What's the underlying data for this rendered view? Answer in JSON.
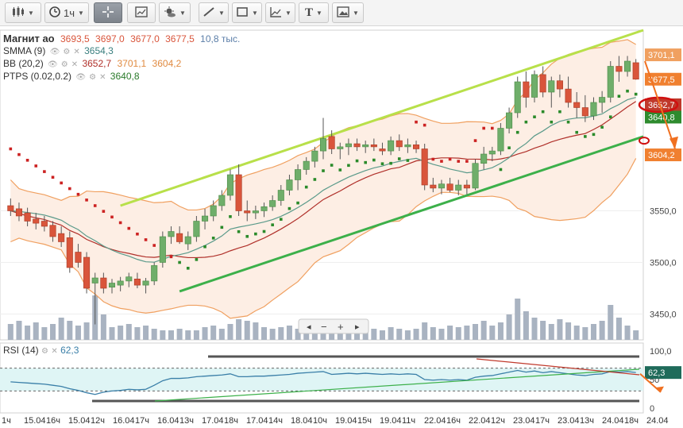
{
  "toolbar": {
    "timeframe": "1ч",
    "text_tool": "T"
  },
  "legend": {
    "symbol": "Магнит ао",
    "ohlc": [
      "3693,5",
      "3697,0",
      "3677,0",
      "3677,5"
    ],
    "volume": "10,8 тыс.",
    "smma_label": "SMMA (9)",
    "smma_value": "3654,3",
    "bb_label": "BB (20,2)",
    "bb_values": [
      "3652,7",
      "3701,1",
      "3604,2"
    ],
    "ptps_label": "PTPS (0.02,0.2)",
    "ptps_value": "3640,8",
    "rsi_label": "RSI (14)",
    "rsi_value": "62,3"
  },
  "price_axis": {
    "ticks": [
      "3550,0",
      "3500,0",
      "3450,0"
    ],
    "tags": [
      {
        "label": "3701,1",
        "color": "#f0a060"
      },
      {
        "label": "3677,5",
        "color": "#f08030"
      },
      {
        "label": "3652,7",
        "color": "#c0392b"
      },
      {
        "label": "3640,8",
        "color": "#2e8b2e"
      },
      {
        "label": "3604,2",
        "color": "#f08030"
      }
    ]
  },
  "rsi_axis": {
    "ticks": [
      "100,0",
      "50",
      "0"
    ],
    "tag": "62,3"
  },
  "x_axis": {
    "labels": [
      "1ч",
      "15.04",
      "16ч",
      "15.04",
      "12ч",
      "16.04",
      "17ч",
      "16.04",
      "13ч",
      "17.04",
      "18ч",
      "17.04",
      "14ч",
      "18.04",
      "10ч",
      "19.04",
      "15ч",
      "19.04",
      "11ч",
      "22.04",
      "16ч",
      "22.04",
      "12ч",
      "23.04",
      "17ч",
      "23.04",
      "13ч",
      "24.04",
      "18ч",
      "24.04"
    ]
  },
  "nav": {
    "minus": "−",
    "plus": "+"
  },
  "colors": {
    "bull": "#6fae6a",
    "bear": "#d9553b",
    "bb_band": "#f0a060",
    "bb_mid": "#b0302a",
    "smma": "#5a9a8a",
    "ptps": "#2a8a2a",
    "ptps_red": "#cc2222",
    "trend_top": "#b8e04a",
    "trend_bottom": "#3cb04a",
    "volume": "#a9b3c1",
    "rsi": "#3a7fa8",
    "rsi_fill": "#dff5f5"
  },
  "chart_data": {
    "type": "candlestick",
    "interval": "1ч",
    "price_ylim": [
      3425,
      3725
    ],
    "rsi_ylim": [
      0,
      100
    ],
    "last": {
      "open": 3693.5,
      "high": 3697.0,
      "low": 3677.0,
      "close": 3677.5,
      "volume": "10,8 тыс."
    },
    "indicators": {
      "SMMA (9)": 3654.3,
      "BB (20,2)": {
        "mid": 3652.7,
        "upper": 3701.1,
        "lower": 3604.2
      },
      "PTPS (0.02,0.2)": 3640.8,
      "RSI (14)": 62.3
    },
    "candles": [
      [
        3555,
        3562,
        3545,
        3550
      ],
      [
        3552,
        3558,
        3540,
        3545
      ],
      [
        3548,
        3553,
        3535,
        3540
      ],
      [
        3542,
        3548,
        3532,
        3538
      ],
      [
        3540,
        3545,
        3530,
        3535
      ],
      [
        3536,
        3540,
        3520,
        3525
      ],
      [
        3528,
        3535,
        3515,
        3520
      ],
      [
        3524,
        3530,
        3490,
        3495
      ],
      [
        3510,
        3518,
        3495,
        3500
      ],
      [
        3505,
        3510,
        3470,
        3475
      ],
      [
        3480,
        3490,
        3440,
        3485
      ],
      [
        3485,
        3490,
        3470,
        3475
      ],
      [
        3476,
        3484,
        3470,
        3480
      ],
      [
        3478,
        3486,
        3472,
        3482
      ],
      [
        3482,
        3490,
        3476,
        3486
      ],
      [
        3484,
        3490,
        3475,
        3478
      ],
      [
        3478,
        3485,
        3470,
        3482
      ],
      [
        3482,
        3500,
        3478,
        3497
      ],
      [
        3500,
        3530,
        3495,
        3525
      ],
      [
        3525,
        3535,
        3518,
        3530
      ],
      [
        3528,
        3535,
        3518,
        3520
      ],
      [
        3518,
        3530,
        3512,
        3525
      ],
      [
        3525,
        3545,
        3520,
        3540
      ],
      [
        3540,
        3552,
        3532,
        3545
      ],
      [
        3545,
        3560,
        3540,
        3555
      ],
      [
        3555,
        3570,
        3550,
        3565
      ],
      [
        3565,
        3590,
        3560,
        3585
      ],
      [
        3585,
        3595,
        3545,
        3550
      ],
      [
        3550,
        3560,
        3540,
        3548
      ],
      [
        3548,
        3555,
        3542,
        3550
      ],
      [
        3550,
        3558,
        3544,
        3554
      ],
      [
        3554,
        3565,
        3550,
        3560
      ],
      [
        3560,
        3575,
        3555,
        3570
      ],
      [
        3570,
        3585,
        3565,
        3580
      ],
      [
        3580,
        3595,
        3570,
        3590
      ],
      [
        3590,
        3602,
        3585,
        3598
      ],
      [
        3598,
        3612,
        3592,
        3608
      ],
      [
        3608,
        3640,
        3600,
        3620
      ],
      [
        3622,
        3628,
        3605,
        3610
      ],
      [
        3610,
        3616,
        3600,
        3612
      ],
      [
        3612,
        3620,
        3604,
        3615
      ],
      [
        3615,
        3620,
        3608,
        3612
      ],
      [
        3612,
        3618,
        3606,
        3614
      ],
      [
        3614,
        3620,
        3608,
        3612
      ],
      [
        3610,
        3616,
        3604,
        3608
      ],
      [
        3608,
        3622,
        3604,
        3618
      ],
      [
        3618,
        3624,
        3608,
        3612
      ],
      [
        3612,
        3620,
        3606,
        3614
      ],
      [
        3614,
        3618,
        3606,
        3610
      ],
      [
        3610,
        3615,
        3570,
        3575
      ],
      [
        3575,
        3582,
        3568,
        3572
      ],
      [
        3572,
        3580,
        3566,
        3576
      ],
      [
        3576,
        3582,
        3568,
        3570
      ],
      [
        3570,
        3580,
        3565,
        3575
      ],
      [
        3575,
        3580,
        3566,
        3572
      ],
      [
        3572,
        3600,
        3570,
        3596
      ],
      [
        3596,
        3612,
        3590,
        3605
      ],
      [
        3605,
        3612,
        3598,
        3608
      ],
      [
        3608,
        3635,
        3604,
        3630
      ],
      [
        3630,
        3650,
        3625,
        3645
      ],
      [
        3645,
        3680,
        3640,
        3675
      ],
      [
        3675,
        3685,
        3650,
        3660
      ],
      [
        3660,
        3686,
        3655,
        3682
      ],
      [
        3682,
        3690,
        3660,
        3665
      ],
      [
        3665,
        3680,
        3650,
        3676
      ],
      [
        3676,
        3682,
        3660,
        3668
      ],
      [
        3668,
        3680,
        3650,
        3655
      ],
      [
        3655,
        3665,
        3640,
        3650
      ],
      [
        3650,
        3662,
        3636,
        3642
      ],
      [
        3642,
        3660,
        3638,
        3655
      ],
      [
        3655,
        3666,
        3645,
        3660
      ],
      [
        3660,
        3695,
        3655,
        3690
      ],
      [
        3690,
        3700,
        3675,
        3685
      ],
      [
        3685,
        3700,
        3680,
        3695
      ],
      [
        3693.5,
        3697,
        3677,
        3677.5
      ]
    ],
    "volumes": [
      10,
      12,
      9,
      11,
      8,
      10,
      14,
      12,
      9,
      11,
      28,
      16,
      8,
      9,
      10,
      8,
      9,
      7,
      6,
      6,
      7,
      6,
      6,
      8,
      9,
      7,
      10,
      13,
      12,
      11,
      8,
      7,
      8,
      9,
      7,
      8,
      10,
      12,
      8,
      7,
      6,
      7,
      6,
      7,
      6,
      8,
      7,
      6,
      7,
      11,
      8,
      7,
      9,
      8,
      9,
      10,
      12,
      9,
      11,
      16,
      26,
      18,
      14,
      12,
      10,
      13,
      11,
      9,
      8,
      10,
      12,
      22,
      14,
      9,
      6
    ],
    "rsi": [
      46,
      45,
      44,
      43,
      42,
      40,
      38,
      34,
      31,
      27,
      24,
      28,
      30,
      31,
      33,
      32,
      33,
      40,
      48,
      52,
      52,
      53,
      55,
      56,
      57,
      58,
      60,
      55,
      55,
      56,
      56,
      57,
      58,
      59,
      61,
      62,
      63,
      64,
      59,
      60,
      61,
      60,
      61,
      60,
      59,
      60,
      59,
      60,
      59,
      50,
      49,
      50,
      49,
      50,
      49,
      54,
      56,
      57,
      60,
      63,
      66,
      63,
      65,
      62,
      64,
      62,
      60,
      58,
      57,
      59,
      60,
      64,
      63,
      64,
      62.3
    ]
  }
}
